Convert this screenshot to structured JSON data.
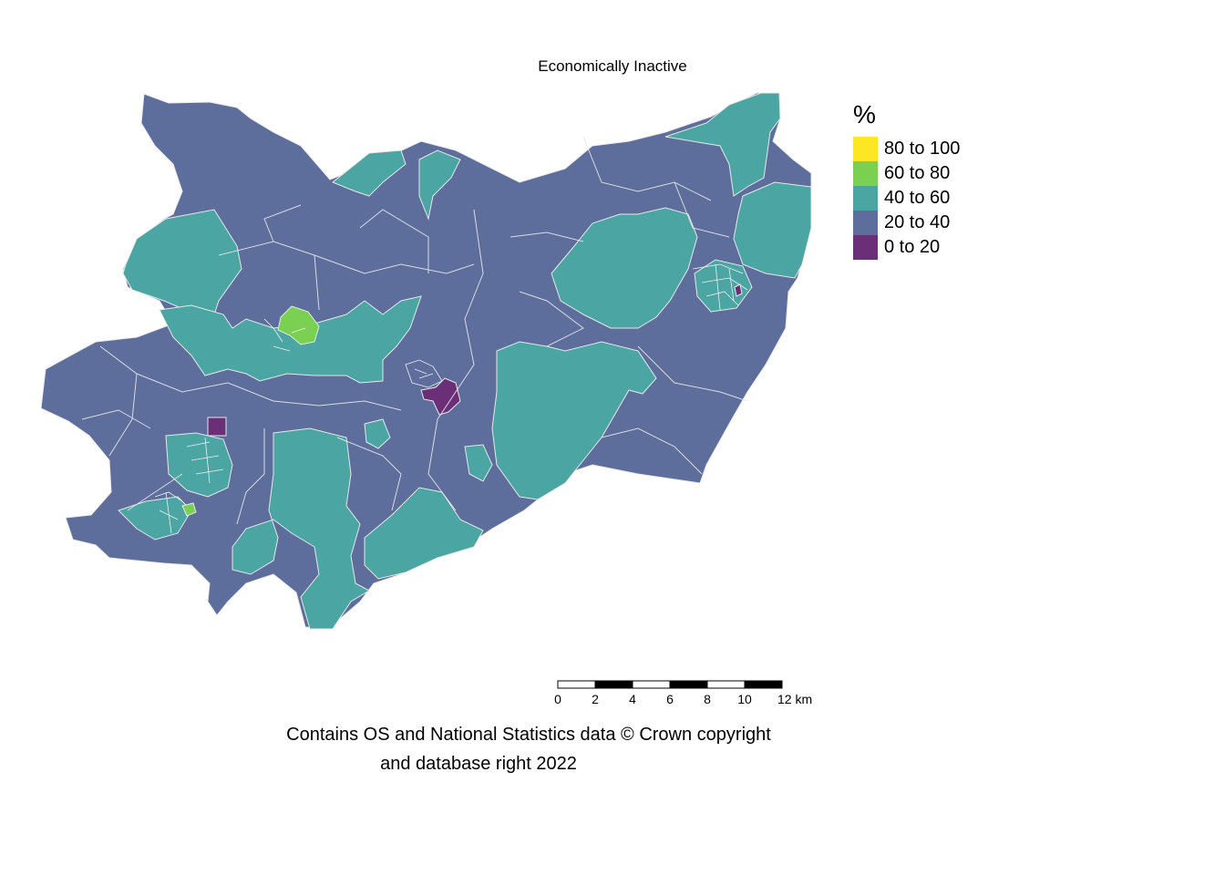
{
  "title": "Economically Inactive",
  "legend": {
    "title": "%",
    "items": [
      {
        "label": "80 to 100",
        "color": "#fde725"
      },
      {
        "label": "60 to 80",
        "color": "#7ad151"
      },
      {
        "label": "40 to 60",
        "color": "#4aa5a3"
      },
      {
        "label": "20 to 40",
        "color": "#5d6d9c"
      },
      {
        "label": "0 to 20",
        "color": "#6a2f77"
      }
    ]
  },
  "scalebar": {
    "ticks": [
      "0",
      "2",
      "4",
      "6",
      "8",
      "10",
      "12 km"
    ]
  },
  "attribution": {
    "line1": "Contains OS and National Statistics data © Crown copyright",
    "line2": "and database right 2022"
  },
  "map": {
    "boundary_color": "#e8e8e8",
    "background_fill_class": "20 to 40",
    "regions": [
      {
        "name": "north-east-coast",
        "class": "40 to 60"
      },
      {
        "name": "east-central-area",
        "class": "40 to 60"
      },
      {
        "name": "north-central-strip",
        "class": "40 to 60"
      },
      {
        "name": "west-area",
        "class": "40 to 60"
      },
      {
        "name": "central-west-area",
        "class": "40 to 60"
      },
      {
        "name": "south-east-area",
        "class": "40 to 60"
      },
      {
        "name": "south-central-area",
        "class": "40 to 60"
      },
      {
        "name": "south-west-town",
        "class": "40 to 60"
      },
      {
        "name": "central-west-town",
        "class": "60 to 80"
      },
      {
        "name": "central-zone",
        "class": "0 to 20"
      },
      {
        "name": "south-west-zone",
        "class": "0 to 20"
      }
    ]
  }
}
